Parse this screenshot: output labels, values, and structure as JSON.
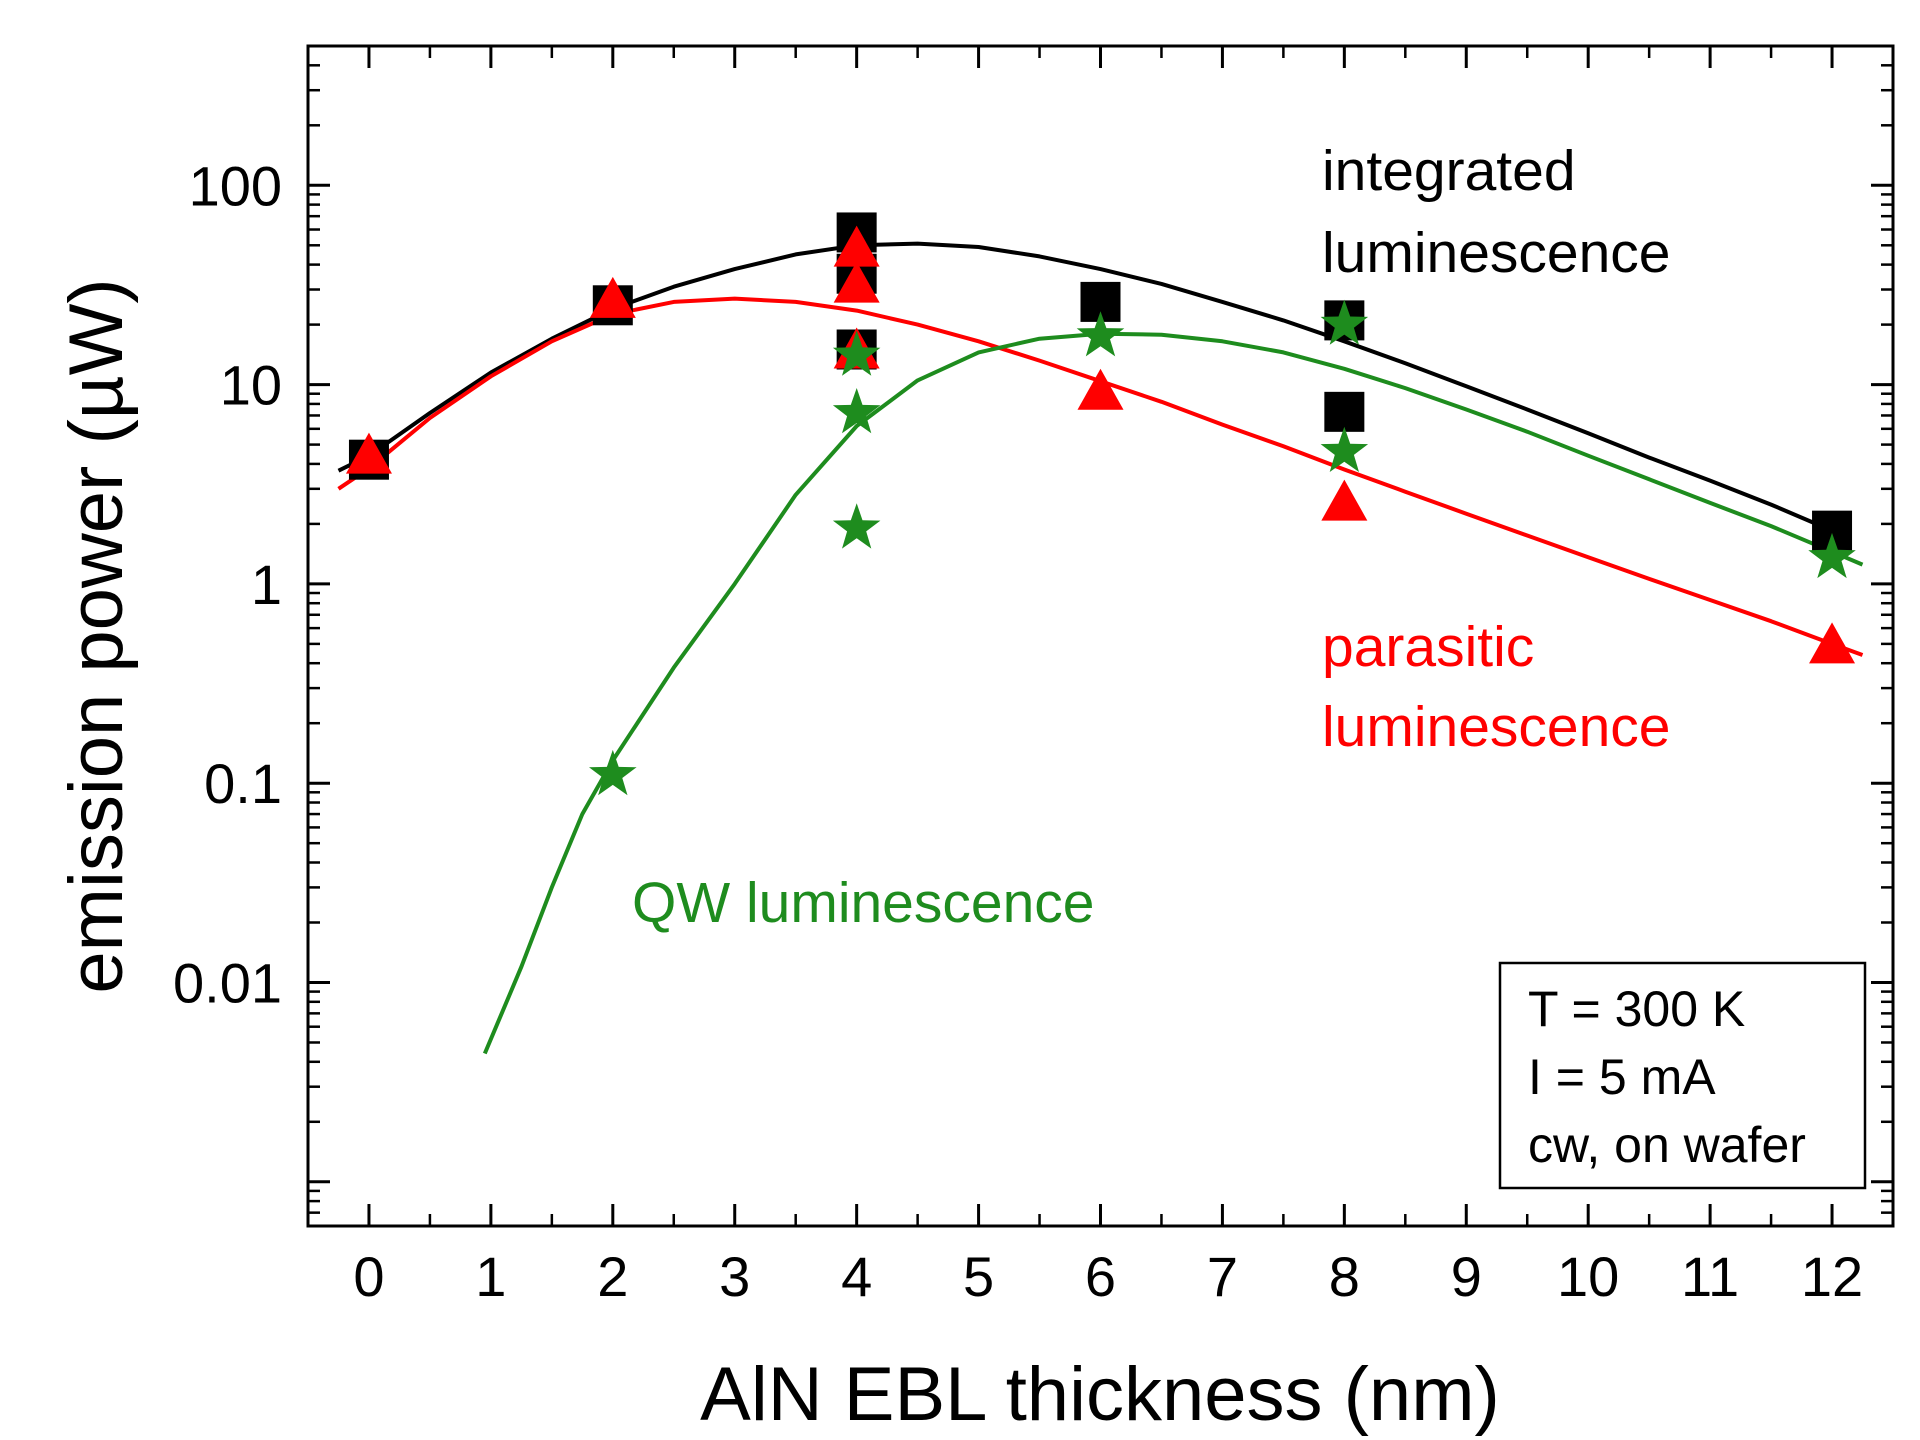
{
  "chart_data": {
    "type": "scatter",
    "xlabel": "AlN EBL thickness (nm)",
    "ylabel": "emission power (µW)",
    "xlim": [
      -0.5,
      12.5
    ],
    "ylim": [
      0.0006,
      500
    ],
    "yscale": "log",
    "grid": false,
    "xticks": [
      0,
      1,
      2,
      3,
      4,
      5,
      6,
      7,
      8,
      9,
      10,
      11,
      12
    ],
    "xtick_labels": [
      "0",
      "1",
      "2",
      "3",
      "4",
      "5",
      "6",
      "7",
      "8",
      "9",
      "10",
      "11",
      "12"
    ],
    "yticks": [
      0.01,
      0.1,
      1,
      10,
      100
    ],
    "ytick_labels": [
      "0.01",
      "0.1",
      "1",
      "10",
      "100"
    ],
    "series": [
      {
        "name": "integrated luminescence",
        "color": "#000000",
        "marker": "square",
        "points": [
          [
            0,
            4.2
          ],
          [
            2,
            25
          ],
          [
            4,
            58
          ],
          [
            4,
            36
          ],
          [
            4,
            15
          ],
          [
            6,
            26
          ],
          [
            8,
            21
          ],
          [
            8,
            7.3
          ],
          [
            12,
            1.85
          ]
        ],
        "fit": [
          [
            -0.25,
            3.7
          ],
          [
            0,
            4.4
          ],
          [
            0.5,
            7.2
          ],
          [
            1,
            11.5
          ],
          [
            1.5,
            17
          ],
          [
            2,
            24
          ],
          [
            2.5,
            31
          ],
          [
            3,
            38
          ],
          [
            3.5,
            45
          ],
          [
            4,
            50
          ],
          [
            4.5,
            51
          ],
          [
            5,
            49
          ],
          [
            5.5,
            44
          ],
          [
            6,
            38
          ],
          [
            6.5,
            32
          ],
          [
            7,
            26
          ],
          [
            7.5,
            21
          ],
          [
            8,
            16.5
          ],
          [
            8.5,
            12.8
          ],
          [
            9,
            9.8
          ],
          [
            9.5,
            7.5
          ],
          [
            10,
            5.7
          ],
          [
            10.5,
            4.3
          ],
          [
            11,
            3.3
          ],
          [
            11.5,
            2.5
          ],
          [
            12,
            1.85
          ]
        ]
      },
      {
        "name": "parasitic luminescence",
        "color": "#ff0000",
        "marker": "triangle",
        "points": [
          [
            0,
            4.3
          ],
          [
            2,
            26
          ],
          [
            4,
            47
          ],
          [
            4,
            31
          ],
          [
            4,
            14.5
          ],
          [
            6,
            9
          ],
          [
            8,
            2.5
          ],
          [
            12,
            0.48
          ]
        ],
        "fit": [
          [
            -0.25,
            3.0
          ],
          [
            0,
            3.8
          ],
          [
            0.5,
            6.8
          ],
          [
            1,
            11
          ],
          [
            1.5,
            16.5
          ],
          [
            2,
            22.5
          ],
          [
            2.5,
            26
          ],
          [
            3,
            27
          ],
          [
            3.5,
            26
          ],
          [
            4,
            23.5
          ],
          [
            4.5,
            20
          ],
          [
            5,
            16.5
          ],
          [
            5.5,
            13.2
          ],
          [
            6,
            10.4
          ],
          [
            6.5,
            8.2
          ],
          [
            7,
            6.3
          ],
          [
            7.5,
            4.9
          ],
          [
            8,
            3.75
          ],
          [
            8.5,
            2.9
          ],
          [
            9,
            2.25
          ],
          [
            9.5,
            1.75
          ],
          [
            10,
            1.36
          ],
          [
            10.5,
            1.06
          ],
          [
            11,
            0.83
          ],
          [
            11.5,
            0.65
          ],
          [
            12,
            0.5
          ],
          [
            12.25,
            0.44
          ]
        ]
      },
      {
        "name": "QW luminescence",
        "color": "#1e8c1e",
        "marker": "star",
        "points": [
          [
            2,
            0.11
          ],
          [
            4,
            14
          ],
          [
            4,
            7.2
          ],
          [
            4,
            1.9
          ],
          [
            6,
            17.5
          ],
          [
            8,
            20
          ],
          [
            8,
            4.6
          ],
          [
            12,
            1.35
          ]
        ],
        "fit": [
          [
            0.95,
            0.0044
          ],
          [
            1.25,
            0.012
          ],
          [
            1.5,
            0.03
          ],
          [
            1.75,
            0.07
          ],
          [
            2,
            0.13
          ],
          [
            2.5,
            0.38
          ],
          [
            3,
            1.0
          ],
          [
            3.5,
            2.8
          ],
          [
            4,
            6.2
          ],
          [
            4.5,
            10.5
          ],
          [
            5,
            14.5
          ],
          [
            5.5,
            17
          ],
          [
            6,
            18
          ],
          [
            6.5,
            17.8
          ],
          [
            7,
            16.5
          ],
          [
            7.5,
            14.5
          ],
          [
            8,
            12
          ],
          [
            8.5,
            9.6
          ],
          [
            9,
            7.5
          ],
          [
            9.5,
            5.8
          ],
          [
            10,
            4.4
          ],
          [
            10.5,
            3.35
          ],
          [
            11,
            2.55
          ],
          [
            11.5,
            1.95
          ],
          [
            12,
            1.45
          ],
          [
            12.25,
            1.25
          ]
        ]
      }
    ],
    "annotations": {
      "integrated": [
        "integrated",
        "luminescence"
      ],
      "parasitic": [
        "parasitic",
        "luminescence"
      ],
      "qw": "QW luminescence"
    },
    "conditions": [
      "T = 300 K",
      "I = 5 mA",
      "cw, on wafer"
    ]
  }
}
